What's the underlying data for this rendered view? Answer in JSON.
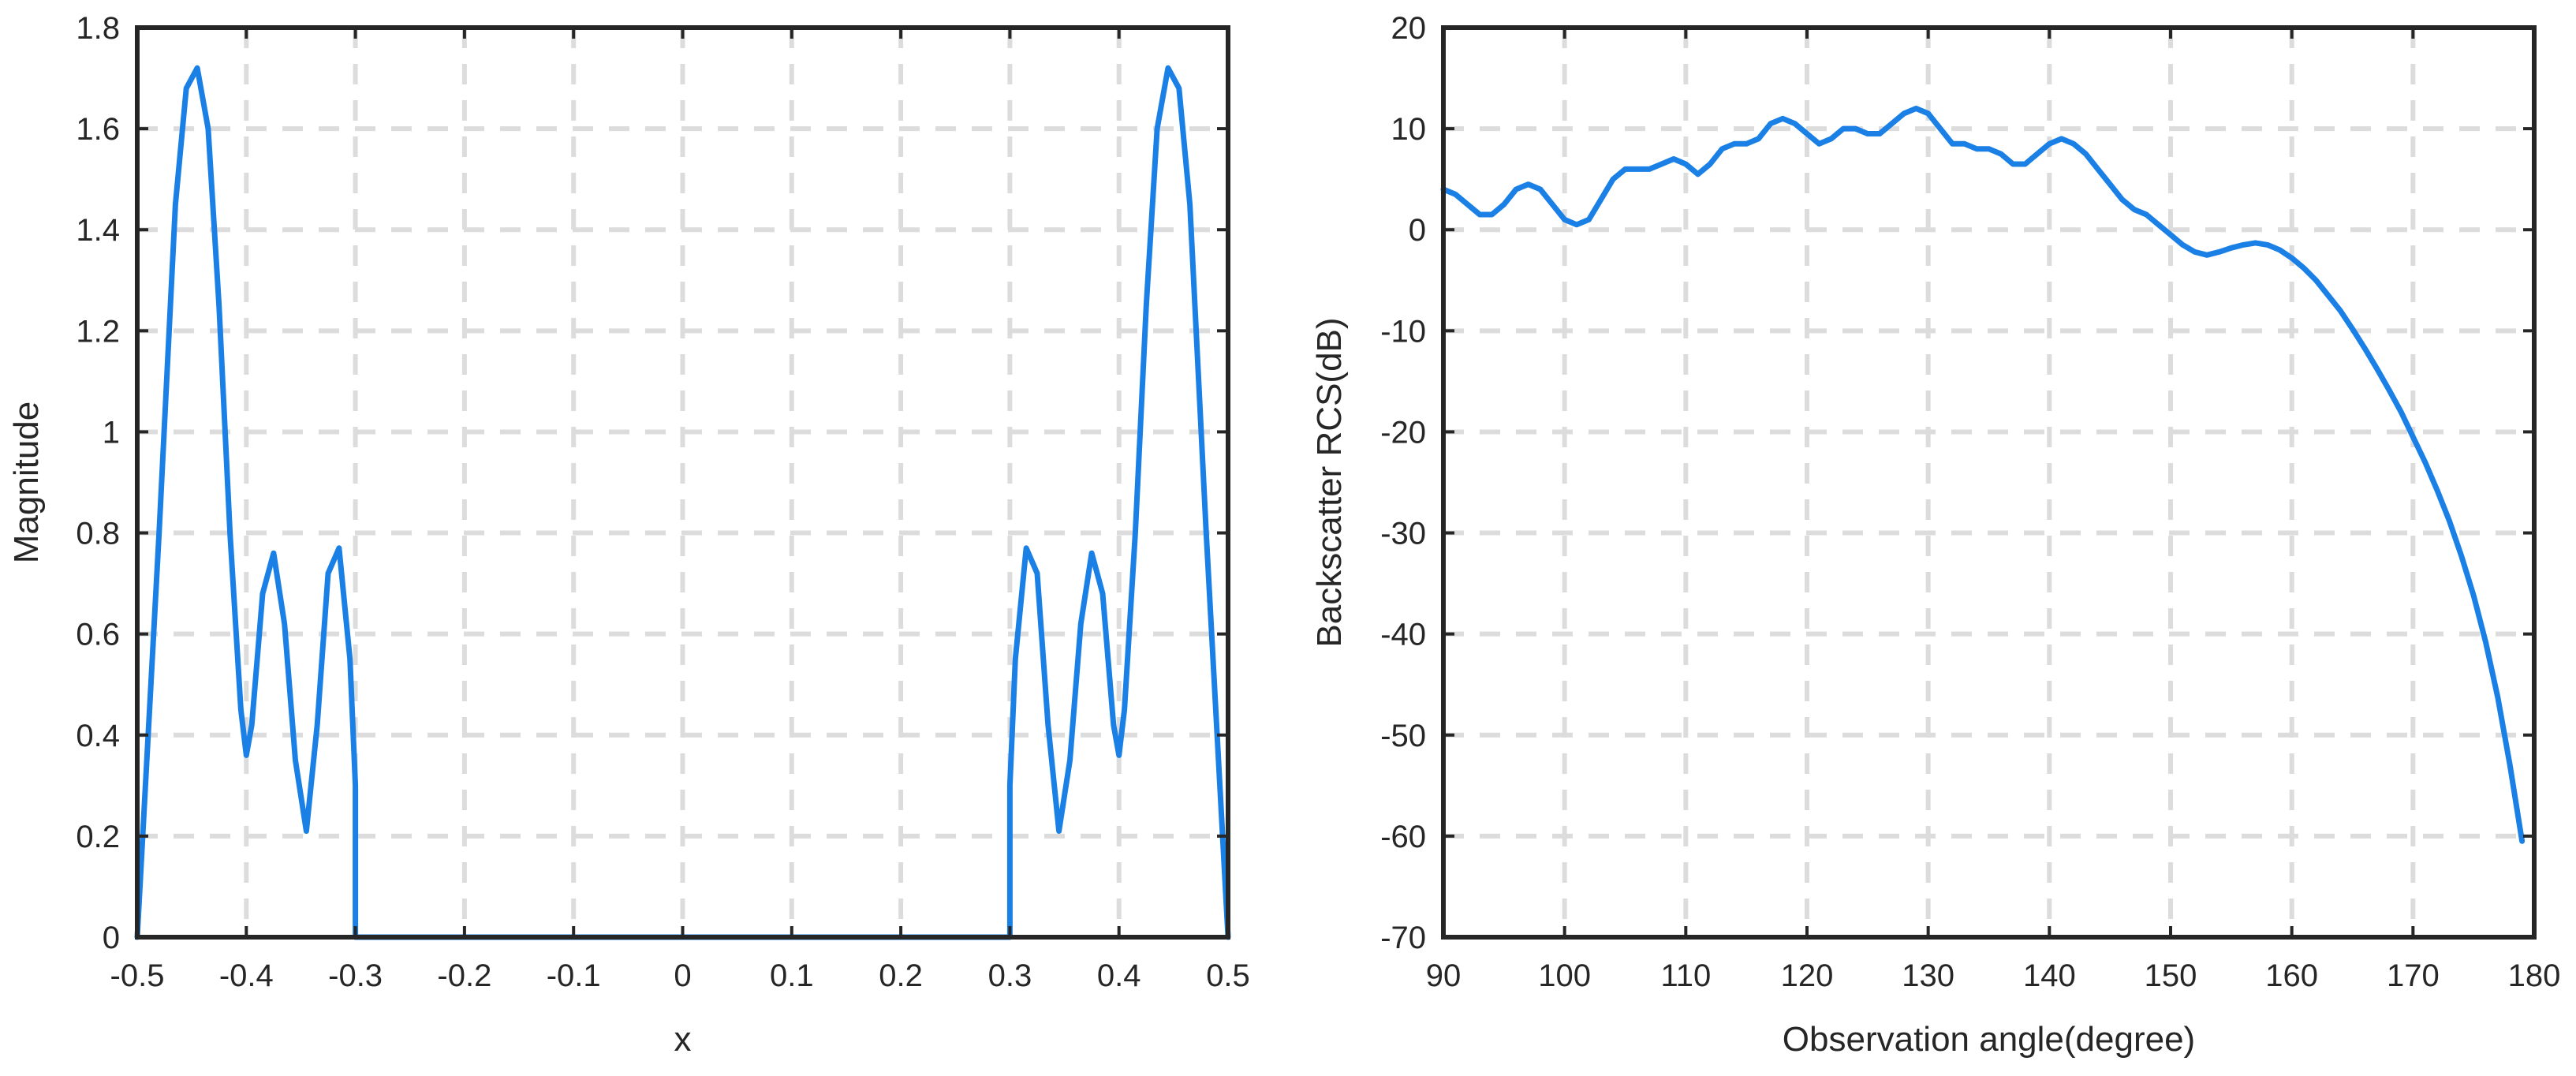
{
  "colors": {
    "series": "#1a80e6",
    "grid": "#dcdcdc",
    "axis": "#262626"
  },
  "chart_data": [
    {
      "type": "line",
      "title": "",
      "xlabel": "x",
      "ylabel": "Magnitude",
      "xlim": [
        -0.5,
        0.5
      ],
      "ylim": [
        0,
        1.8
      ],
      "xticks": [
        -0.5,
        -0.4,
        -0.3,
        -0.2,
        -0.1,
        0,
        0.1,
        0.2,
        0.3,
        0.4,
        0.5
      ],
      "xtick_labels": [
        "-0.5",
        "-0.4",
        "-0.3",
        "-0.2",
        "-0.1",
        "0",
        "0.1",
        "0.2",
        "0.3",
        "0.4",
        "0.5"
      ],
      "yticks": [
        0,
        0.2,
        0.4,
        0.6,
        0.8,
        1,
        1.2,
        1.4,
        1.6,
        1.8
      ],
      "ytick_labels": [
        "0",
        "0.2",
        "0.4",
        "0.6",
        "0.8",
        "1",
        "1.2",
        "1.4",
        "1.6",
        "1.8"
      ],
      "grid": true,
      "series": [
        {
          "x": [
            -0.5,
            -0.48,
            -0.465,
            -0.455,
            -0.445,
            -0.435,
            -0.425,
            -0.415,
            -0.405,
            -0.4,
            -0.395,
            -0.385,
            -0.375,
            -0.365,
            -0.355,
            -0.345,
            -0.335,
            -0.325,
            -0.315,
            -0.305,
            -0.3,
            -0.3,
            0.3,
            0.3,
            0.305,
            0.315,
            0.325,
            0.335,
            0.345,
            0.355,
            0.365,
            0.375,
            0.385,
            0.395,
            0.4,
            0.405,
            0.415,
            0.425,
            0.435,
            0.445,
            0.455,
            0.465,
            0.48,
            0.5
          ],
          "y": [
            0,
            0.8,
            1.45,
            1.68,
            1.72,
            1.6,
            1.25,
            0.8,
            0.45,
            0.36,
            0.42,
            0.68,
            0.76,
            0.62,
            0.35,
            0.21,
            0.42,
            0.72,
            0.77,
            0.55,
            0.3,
            0,
            0,
            0.3,
            0.55,
            0.77,
            0.72,
            0.42,
            0.21,
            0.35,
            0.62,
            0.76,
            0.68,
            0.42,
            0.36,
            0.45,
            0.8,
            1.25,
            1.6,
            1.72,
            1.68,
            1.45,
            0.8,
            0
          ]
        }
      ]
    },
    {
      "type": "line",
      "title": "",
      "xlabel": "Observation angle(degree)",
      "ylabel": "Backscatter RCS(dB)",
      "xlim": [
        90,
        180
      ],
      "ylim": [
        -70,
        20
      ],
      "xticks": [
        90,
        100,
        110,
        120,
        130,
        140,
        150,
        160,
        170,
        180
      ],
      "xtick_labels": [
        "90",
        "100",
        "110",
        "120",
        "130",
        "140",
        "150",
        "160",
        "170",
        "180"
      ],
      "yticks": [
        -70,
        -60,
        -50,
        -40,
        -30,
        -20,
        -10,
        0,
        10,
        20
      ],
      "ytick_labels": [
        "-70",
        "-60",
        "-50",
        "-40",
        "-30",
        "-20",
        "-10",
        "0",
        "10",
        "20"
      ],
      "grid": true,
      "series": [
        {
          "x": [
            90,
            91,
            92,
            93,
            94,
            95,
            96,
            97,
            98,
            99,
            100,
            101,
            102,
            103,
            104,
            105,
            106,
            107,
            108,
            109,
            110,
            111,
            112,
            113,
            114,
            115,
            116,
            117,
            118,
            119,
            120,
            121,
            122,
            123,
            124,
            125,
            126,
            127,
            128,
            129,
            130,
            131,
            132,
            133,
            134,
            135,
            136,
            137,
            138,
            139,
            140,
            141,
            142,
            143,
            144,
            145,
            146,
            147,
            148,
            149,
            150,
            151,
            152,
            153,
            154,
            155,
            156,
            157,
            158,
            159,
            160,
            161,
            162,
            163,
            164,
            165,
            166,
            167,
            168,
            169,
            170,
            171,
            172,
            173,
            174,
            175,
            176,
            177,
            178,
            179
          ],
          "y": [
            4,
            3.5,
            2.5,
            1.5,
            1.5,
            2.5,
            4,
            4.5,
            4,
            2.5,
            1,
            0.5,
            1,
            3,
            5,
            6,
            6,
            6,
            6.5,
            7,
            6.5,
            5.5,
            6.5,
            8,
            8.5,
            8.5,
            9,
            10.5,
            11,
            10.5,
            9.5,
            8.5,
            9,
            10,
            10,
            9.5,
            9.5,
            10.5,
            11.5,
            12,
            11.5,
            10,
            8.5,
            8.5,
            8,
            8,
            7.5,
            6.5,
            6.5,
            7.5,
            8.5,
            9,
            8.5,
            7.5,
            6,
            4.5,
            3,
            2,
            1.5,
            0.5,
            -0.5,
            -1.5,
            -2.2,
            -2.5,
            -2.2,
            -1.8,
            -1.5,
            -1.3,
            -1.5,
            -2,
            -2.8,
            -3.8,
            -5,
            -6.5,
            -8,
            -9.8,
            -11.7,
            -13.7,
            -15.8,
            -18,
            -20.5,
            -23,
            -25.8,
            -28.8,
            -32.3,
            -36.2,
            -40.8,
            -46.3,
            -53,
            -60.5
          ]
        }
      ]
    }
  ]
}
